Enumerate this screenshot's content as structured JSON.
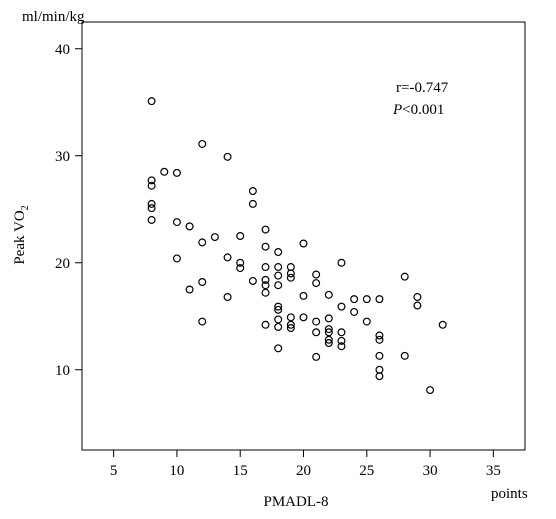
{
  "chart_data": {
    "type": "scatter",
    "title": "",
    "xlabel": "PMADL-8",
    "x_unit": "points",
    "ylabel_main": "Peak VO",
    "ylabel_sub": "2",
    "y_unit": "ml/min/kg",
    "xlim": [
      2.5,
      37.5
    ],
    "ylim": [
      2.5,
      42.5
    ],
    "xticks": [
      5,
      10,
      15,
      20,
      25,
      30,
      35
    ],
    "yticks": [
      10,
      20,
      30,
      40
    ],
    "grid": false,
    "legend": "none",
    "annotation_r": "r=-0.747",
    "annotation_p_symbol": "P",
    "annotation_p_value": "<0.001",
    "points": [
      [
        8,
        35.1
      ],
      [
        8,
        27.7
      ],
      [
        8,
        27.2
      ],
      [
        8,
        25.5
      ],
      [
        8,
        25.1
      ],
      [
        8,
        24.0
      ],
      [
        9,
        28.5
      ],
      [
        10,
        28.4
      ],
      [
        10,
        23.8
      ],
      [
        10,
        20.4
      ],
      [
        11,
        23.4
      ],
      [
        11,
        17.5
      ],
      [
        12,
        31.1
      ],
      [
        12,
        21.9
      ],
      [
        12,
        18.2
      ],
      [
        12,
        14.5
      ],
      [
        13,
        22.4
      ],
      [
        14,
        29.9
      ],
      [
        14,
        20.5
      ],
      [
        14,
        16.8
      ],
      [
        15,
        22.5
      ],
      [
        15,
        20.0
      ],
      [
        15,
        19.5
      ],
      [
        16,
        26.7
      ],
      [
        16,
        25.5
      ],
      [
        16,
        18.3
      ],
      [
        17,
        23.1
      ],
      [
        17,
        21.5
      ],
      [
        17,
        19.6
      ],
      [
        17,
        18.4
      ],
      [
        17,
        17.9
      ],
      [
        17,
        17.2
      ],
      [
        17,
        14.2
      ],
      [
        18,
        21.0
      ],
      [
        18,
        19.6
      ],
      [
        18,
        18.8
      ],
      [
        18,
        17.9
      ],
      [
        18,
        15.9
      ],
      [
        18,
        15.6
      ],
      [
        18,
        14.7
      ],
      [
        18,
        14.0
      ],
      [
        18,
        12.0
      ],
      [
        19,
        19.6
      ],
      [
        19,
        19.0
      ],
      [
        19,
        18.6
      ],
      [
        19,
        14.9
      ],
      [
        19,
        14.2
      ],
      [
        19,
        13.9
      ],
      [
        20,
        21.8
      ],
      [
        20,
        16.9
      ],
      [
        20,
        14.9
      ],
      [
        21,
        18.9
      ],
      [
        21,
        18.1
      ],
      [
        21,
        14.5
      ],
      [
        21,
        13.5
      ],
      [
        21,
        11.2
      ],
      [
        22,
        17.0
      ],
      [
        22,
        14.8
      ],
      [
        22,
        13.8
      ],
      [
        22,
        13.5
      ],
      [
        22,
        12.8
      ],
      [
        22,
        12.5
      ],
      [
        23,
        20.0
      ],
      [
        23,
        15.9
      ],
      [
        23,
        13.5
      ],
      [
        23,
        12.7
      ],
      [
        23,
        12.2
      ],
      [
        24,
        16.6
      ],
      [
        24,
        15.4
      ],
      [
        25,
        16.6
      ],
      [
        25,
        14.5
      ],
      [
        26,
        16.6
      ],
      [
        26,
        13.2
      ],
      [
        26,
        12.8
      ],
      [
        26,
        11.3
      ],
      [
        26,
        10.0
      ],
      [
        26,
        9.4
      ],
      [
        28,
        18.7
      ],
      [
        28,
        11.3
      ],
      [
        29,
        16.8
      ],
      [
        29,
        16.0
      ],
      [
        30,
        8.1
      ],
      [
        31,
        14.2
      ]
    ]
  }
}
